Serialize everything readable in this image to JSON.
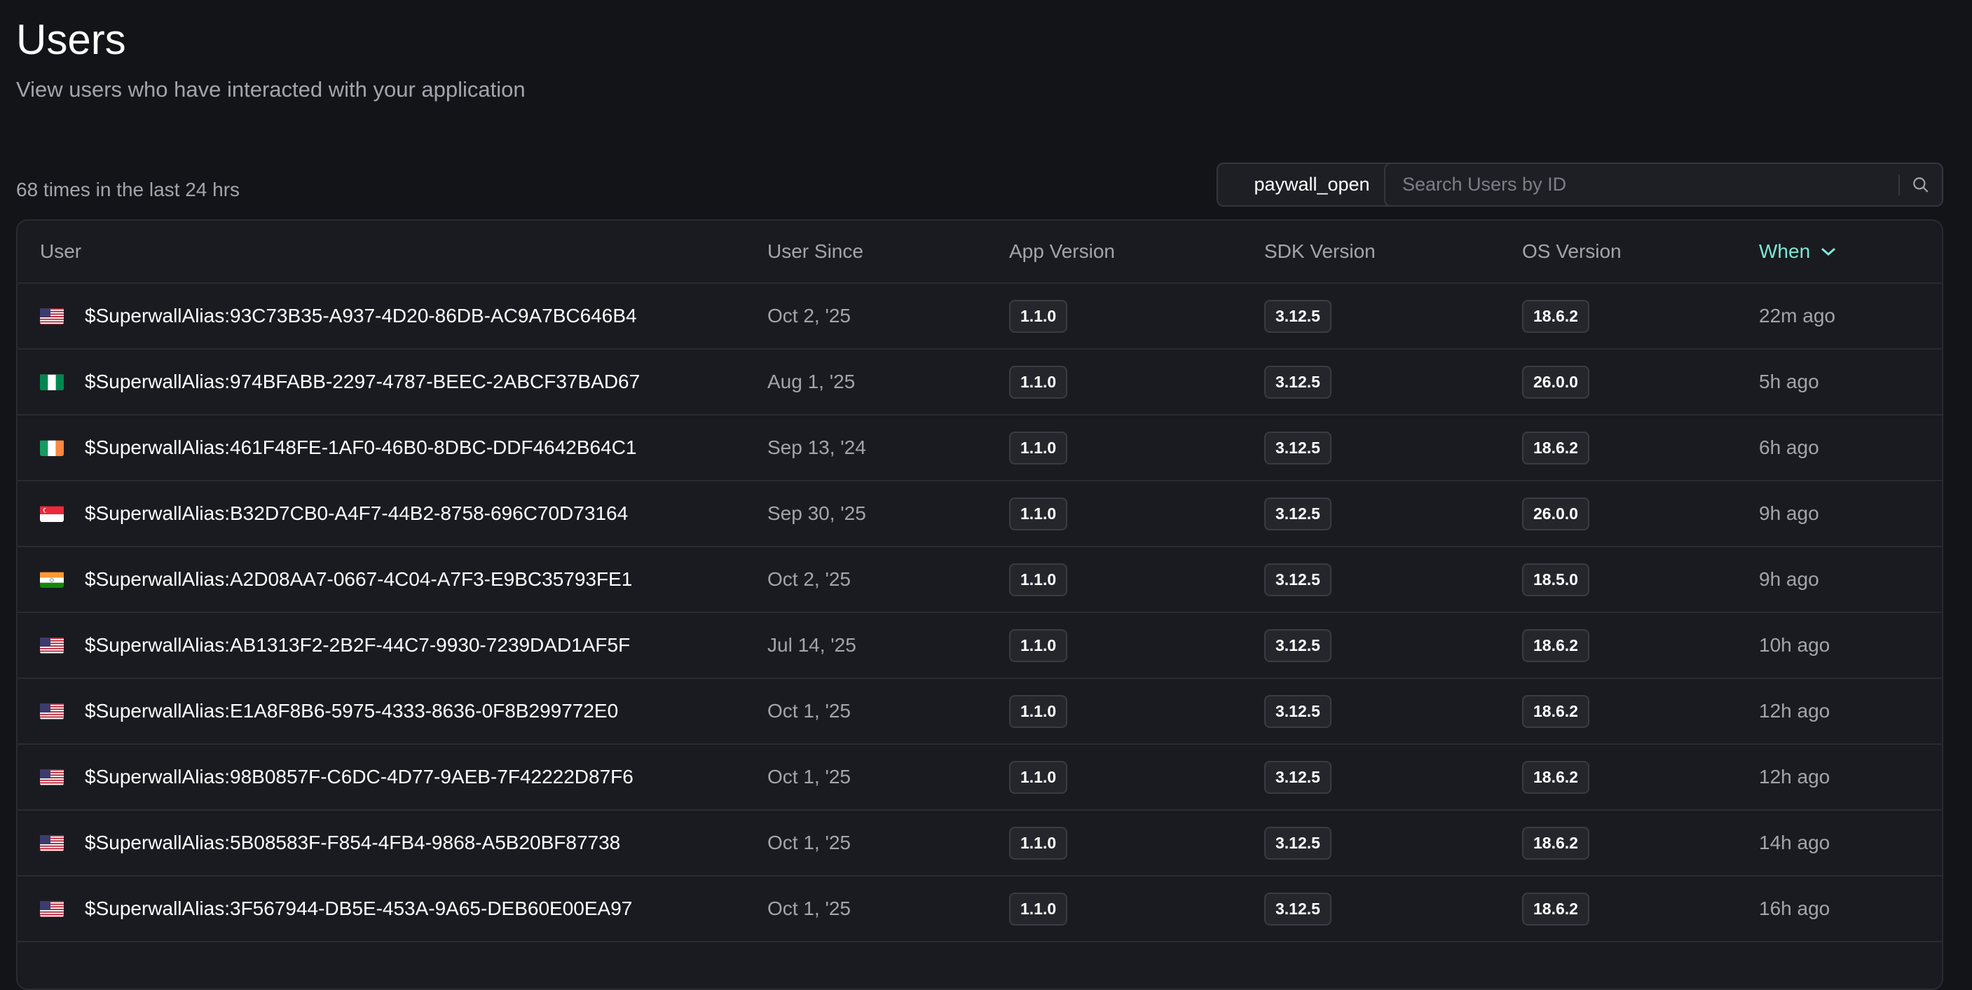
{
  "header": {
    "title": "Users",
    "subtitle": "View users who have interacted with your application"
  },
  "summary": "68 times in the last 24 hrs",
  "event_filter": "paywall_open",
  "search": {
    "placeholder": "Search Users by ID",
    "value": "",
    "icon": "search-icon"
  },
  "accent_color": "#7ee8d8",
  "table": {
    "columns": [
      "User",
      "User Since",
      "App Version",
      "SDK Version",
      "OS Version",
      "When"
    ],
    "sorted_by": "When",
    "sort_direction": "descending",
    "rows": [
      {
        "flag": "us",
        "user": "$SuperwallAlias:93C73B35-A937-4D20-86DB-AC9A7BC646B4",
        "since": "Oct 2, '25",
        "app": "1.1.0",
        "sdk": "3.12.5",
        "os": "18.6.2",
        "when": "22m ago"
      },
      {
        "flag": "ng",
        "user": "$SuperwallAlias:974BFABB-2297-4787-BEEC-2ABCF37BAD67",
        "since": "Aug 1, '25",
        "app": "1.1.0",
        "sdk": "3.12.5",
        "os": "26.0.0",
        "when": "5h ago"
      },
      {
        "flag": "ie",
        "user": "$SuperwallAlias:461F48FE-1AF0-46B0-8DBC-DDF4642B64C1",
        "since": "Sep 13, '24",
        "app": "1.1.0",
        "sdk": "3.12.5",
        "os": "18.6.2",
        "when": "6h ago"
      },
      {
        "flag": "sg",
        "user": "$SuperwallAlias:B32D7CB0-A4F7-44B2-8758-696C70D73164",
        "since": "Sep 30, '25",
        "app": "1.1.0",
        "sdk": "3.12.5",
        "os": "26.0.0",
        "when": "9h ago"
      },
      {
        "flag": "in",
        "user": "$SuperwallAlias:A2D08AA7-0667-4C04-A7F3-E9BC35793FE1",
        "since": "Oct 2, '25",
        "app": "1.1.0",
        "sdk": "3.12.5",
        "os": "18.5.0",
        "when": "9h ago"
      },
      {
        "flag": "us",
        "user": "$SuperwallAlias:AB1313F2-2B2F-44C7-9930-7239DAD1AF5F",
        "since": "Jul 14, '25",
        "app": "1.1.0",
        "sdk": "3.12.5",
        "os": "18.6.2",
        "when": "10h ago"
      },
      {
        "flag": "us",
        "user": "$SuperwallAlias:E1A8F8B6-5975-4333-8636-0F8B299772E0",
        "since": "Oct 1, '25",
        "app": "1.1.0",
        "sdk": "3.12.5",
        "os": "18.6.2",
        "when": "12h ago"
      },
      {
        "flag": "us",
        "user": "$SuperwallAlias:98B0857F-C6DC-4D77-9AEB-7F42222D87F6",
        "since": "Oct 1, '25",
        "app": "1.1.0",
        "sdk": "3.12.5",
        "os": "18.6.2",
        "when": "12h ago"
      },
      {
        "flag": "us",
        "user": "$SuperwallAlias:5B08583F-F854-4FB4-9868-A5B20BF87738",
        "since": "Oct 1, '25",
        "app": "1.1.0",
        "sdk": "3.12.5",
        "os": "18.6.2",
        "when": "14h ago"
      },
      {
        "flag": "us",
        "user": "$SuperwallAlias:3F567944-DB5E-453A-9A65-DEB60E00EA97",
        "since": "Oct 1, '25",
        "app": "1.1.0",
        "sdk": "3.12.5",
        "os": "18.6.2",
        "when": "16h ago"
      }
    ]
  }
}
